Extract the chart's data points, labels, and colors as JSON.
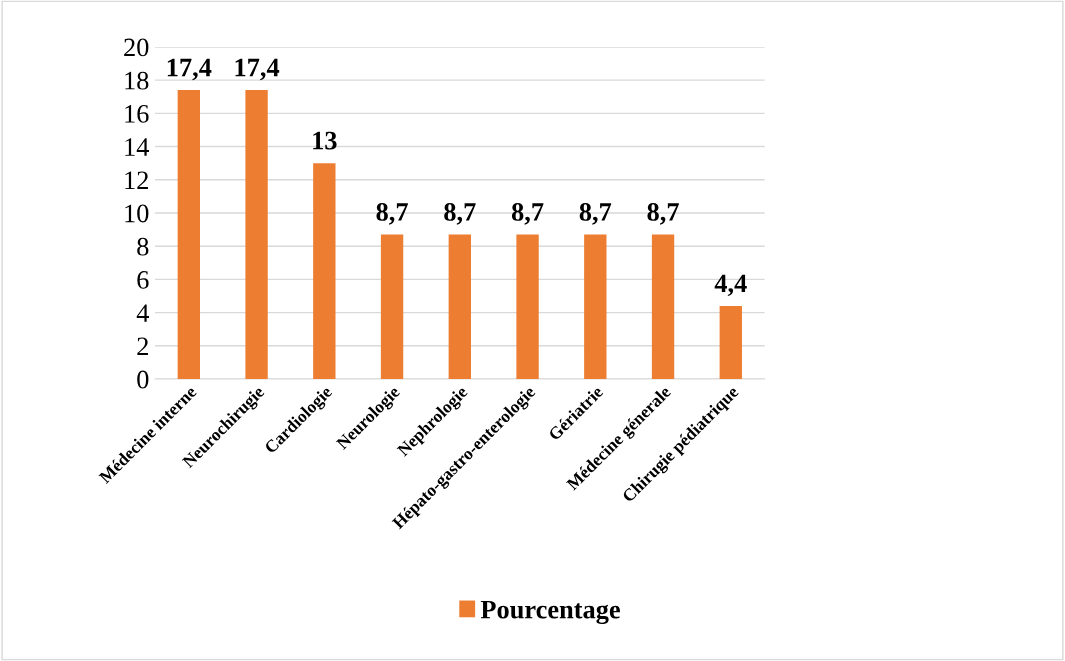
{
  "chart_data": {
    "type": "bar",
    "categories": [
      "Médecine interne",
      "Neurochirugie",
      "Cardiologie",
      "Neurologie",
      "Nephrologie",
      "Hépato-gastro-enterologie",
      "Gériatrie",
      "Médecine génerale",
      "Chirugie pédiatrique"
    ],
    "series": [
      {
        "name": "Pourcentage",
        "color": "#ed7d31",
        "values": [
          17.4,
          17.4,
          13,
          8.7,
          8.7,
          8.7,
          8.7,
          8.7,
          4.4
        ],
        "value_labels": [
          "17,4",
          "17,4",
          "13",
          "8,7",
          "8,7",
          "8,7",
          "8,7",
          "8,7",
          "4,4"
        ]
      }
    ],
    "ylim": [
      0,
      20
    ],
    "yticks": [
      0,
      2,
      4,
      6,
      8,
      10,
      12,
      14,
      16,
      18,
      20
    ],
    "grid": "y",
    "legend": "bottom"
  }
}
